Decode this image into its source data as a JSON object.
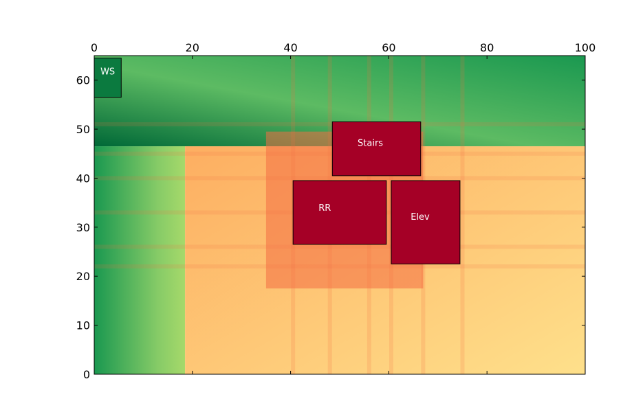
{
  "chart_data": {
    "type": "heatmap",
    "title": "",
    "xlabel": "",
    "ylabel": "",
    "xlim": [
      0,
      100
    ],
    "ylim": [
      0,
      65
    ],
    "x_axis_position": "top",
    "x_ticks": [
      0,
      20,
      40,
      60,
      80,
      100
    ],
    "y_ticks": [
      0,
      10,
      20,
      30,
      40,
      50,
      60
    ],
    "grid": false,
    "colormap": "RdYlGn",
    "rooms": [
      {
        "label": "WS",
        "x0": 0,
        "x1": 5.5,
        "y0": 56.5,
        "y1": 64.5,
        "color": "#0b7a3f"
      },
      {
        "label": "Stairs",
        "x0": 48.5,
        "x1": 66.5,
        "y0": 40.5,
        "y1": 51.5,
        "color": "#a50026"
      },
      {
        "label": "RR",
        "x0": 40.5,
        "x1": 59.5,
        "y0": 26.5,
        "y1": 39.5,
        "color": "#a50026"
      },
      {
        "label": "Elev",
        "x0": 60.5,
        "x1": 74.5,
        "y0": 22.5,
        "y1": 39.5,
        "color": "#a50026"
      }
    ],
    "regions": [
      {
        "name": "green-zone",
        "x0": 0,
        "x1": 100,
        "y0": 46.5,
        "y1": 65,
        "from": "#006837",
        "to": "#a6d96a"
      },
      {
        "name": "green-left",
        "x0": 0,
        "x1": 18.5,
        "y0": 0,
        "y1": 46.5,
        "from": "#006837",
        "to": "#a6d96a"
      },
      {
        "name": "orange-zone",
        "x0": 18.5,
        "x1": 100,
        "y0": 0,
        "y1": 46.5,
        "from": "#fdae61",
        "to": "#fee08b"
      },
      {
        "name": "hot-zone",
        "x0": 35,
        "x1": 67,
        "y0": 17.5,
        "y1": 49.5,
        "color": "#f46d43"
      }
    ],
    "bands_x": [
      40.5,
      48,
      56,
      60.5,
      67,
      75
    ],
    "bands_y": [
      22,
      26,
      33,
      40,
      45,
      51
    ]
  }
}
